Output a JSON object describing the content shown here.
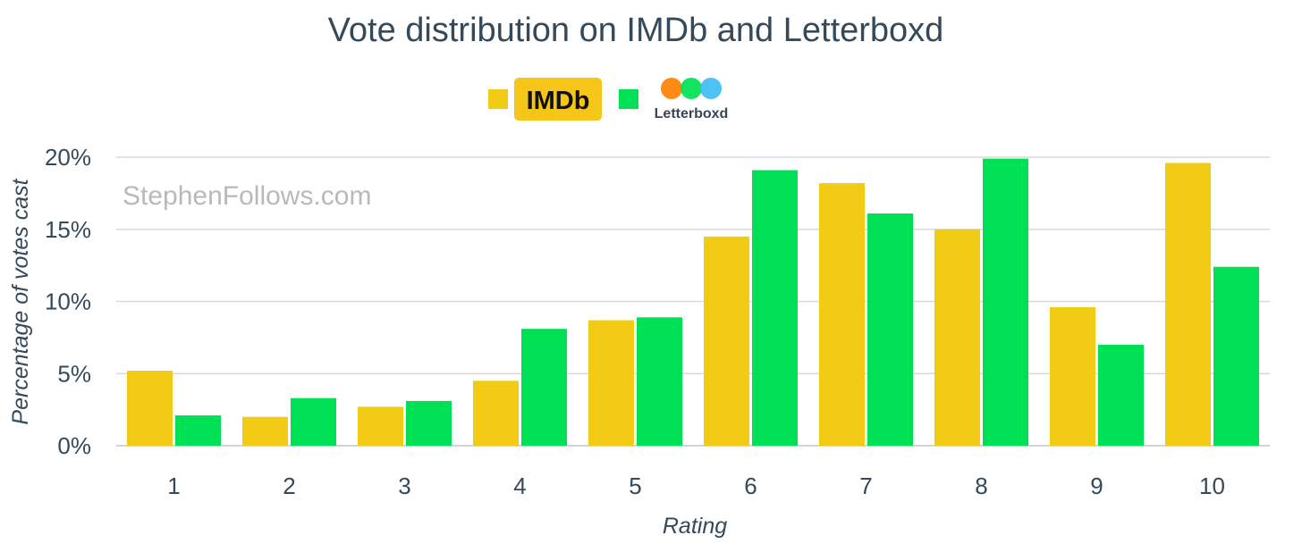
{
  "chart_data": {
    "type": "bar",
    "title": "Vote distribution on IMDb and Letterboxd",
    "xlabel": "Rating",
    "ylabel": "Percentage of votes cast",
    "categories": [
      "1",
      "2",
      "3",
      "4",
      "5",
      "6",
      "7",
      "8",
      "9",
      "10"
    ],
    "series": [
      {
        "name": "IMDb",
        "color": "#f2cb14",
        "values": [
          5.2,
          2.0,
          2.7,
          4.5,
          8.7,
          14.5,
          18.2,
          15.0,
          9.6,
          19.6
        ]
      },
      {
        "name": "Letterboxd",
        "color": "#00e054",
        "values": [
          2.1,
          3.3,
          3.1,
          8.1,
          8.9,
          19.1,
          16.1,
          19.9,
          7.0,
          12.4
        ]
      }
    ],
    "ylim": [
      0,
      20
    ],
    "yticks": [
      0,
      5,
      10,
      15,
      20
    ],
    "ytick_labels": [
      "0%",
      "5%",
      "10%",
      "15%",
      "20%"
    ],
    "grid": true,
    "legend_position": "top-center"
  },
  "legend": {
    "imdb_logo_text": "IMDb",
    "letterboxd_logo_text": "Letterboxd",
    "imdb_logo_bg": "#f5c518",
    "letterboxd_dot_colors": [
      "#ff8000",
      "#00e054",
      "#40bcf4"
    ]
  },
  "watermark": "StephenFollows.com"
}
